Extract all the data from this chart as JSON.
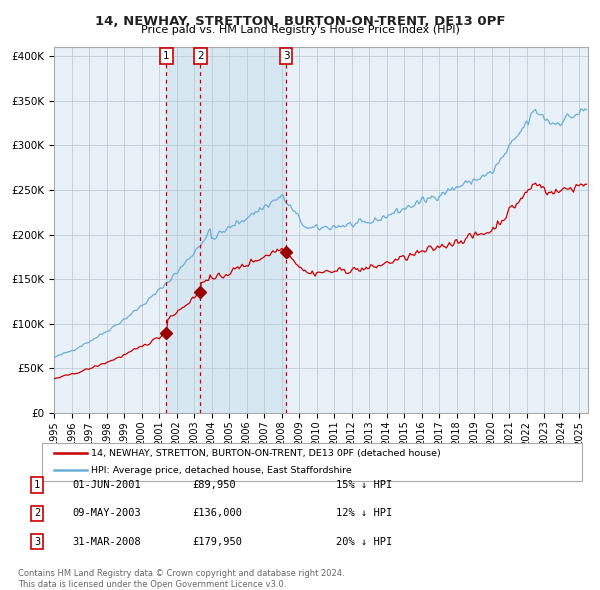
{
  "title": "14, NEWHAY, STRETTON, BURTON-ON-TRENT, DE13 0PF",
  "subtitle": "Price paid vs. HM Land Registry's House Price Index (HPI)",
  "legend_line1": "14, NEWHAY, STRETTON, BURTON-ON-TRENT, DE13 0PF (detached house)",
  "legend_line2": "HPI: Average price, detached house, East Staffordshire",
  "transactions": [
    {
      "label": "1",
      "date_float": 2001.417,
      "price": 89950,
      "note": "15% ↓ HPI",
      "date_str": "01-JUN-2001"
    },
    {
      "label": "2",
      "date_float": 2003.367,
      "price": 136000,
      "note": "12% ↓ HPI",
      "date_str": "09-MAY-2003"
    },
    {
      "label": "3",
      "date_float": 2008.25,
      "price": 179950,
      "note": "20% ↓ HPI",
      "date_str": "31-MAR-2008"
    }
  ],
  "footer": "Contains HM Land Registry data © Crown copyright and database right 2024.\nThis data is licensed under the Open Government Licence v3.0.",
  "hpi_color": "#6baed6",
  "price_color": "#cc0000",
  "transaction_color": "#990000",
  "vline_color": "#cc0000",
  "bg_color": "#ffffff",
  "chart_bg_color": "#e8f0f8",
  "ylim": [
    0,
    400000
  ],
  "yticks": [
    0,
    50000,
    100000,
    150000,
    200000,
    250000,
    300000,
    350000,
    400000
  ],
  "ytick_labels": [
    "£0",
    "£50K",
    "£100K",
    "£150K",
    "£200K",
    "£250K",
    "£300K",
    "£350K",
    "£400K"
  ],
  "xmin": 1995.0,
  "xmax": 2025.5
}
